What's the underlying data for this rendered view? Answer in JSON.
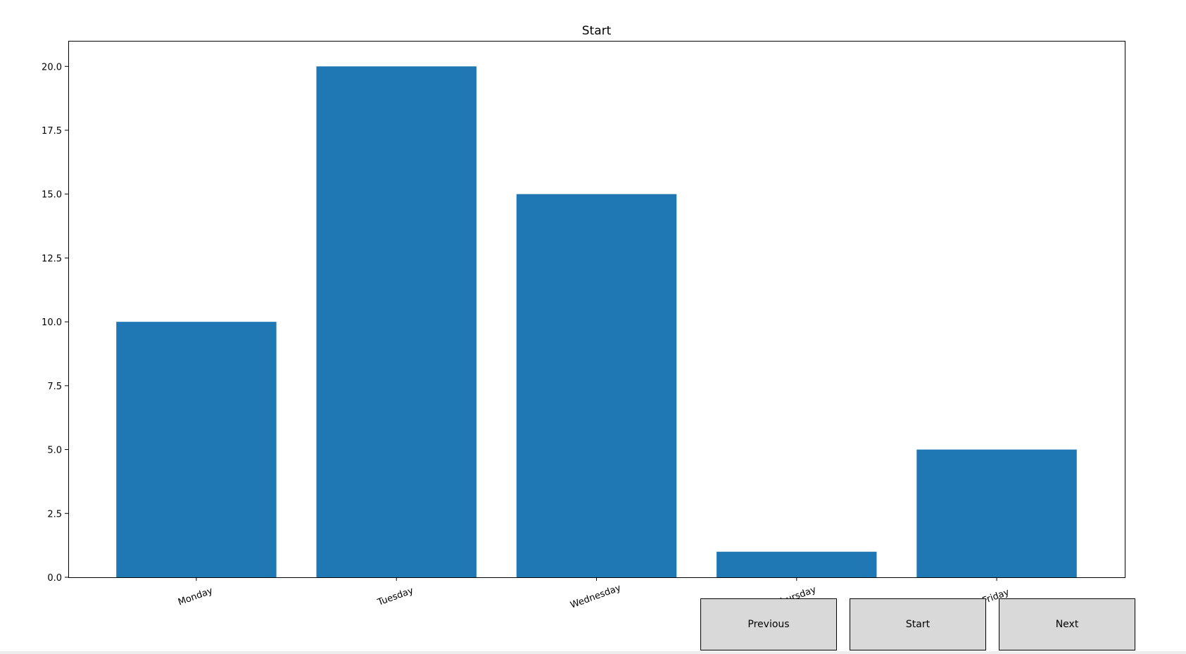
{
  "colors": {
    "bar": "#1f77b4",
    "button_face": "#d9d9d9",
    "axes": "#000000"
  },
  "chart_data": {
    "type": "bar",
    "title": "Start",
    "categories": [
      "Monday",
      "Tuesday",
      "Wednesday",
      "Thursday",
      "Friday"
    ],
    "values": [
      10,
      20,
      15,
      1,
      5
    ],
    "xlabel": "",
    "ylabel": "",
    "ylim": [
      0,
      21
    ],
    "yticks": [
      "0.0",
      "2.5",
      "5.0",
      "7.5",
      "10.0",
      "12.5",
      "15.0",
      "17.5",
      "20.0"
    ],
    "grid": false,
    "xtick_rotation_deg": 20
  },
  "controls": {
    "previous_label": "Previous",
    "start_label": "Start",
    "next_label": "Next"
  }
}
